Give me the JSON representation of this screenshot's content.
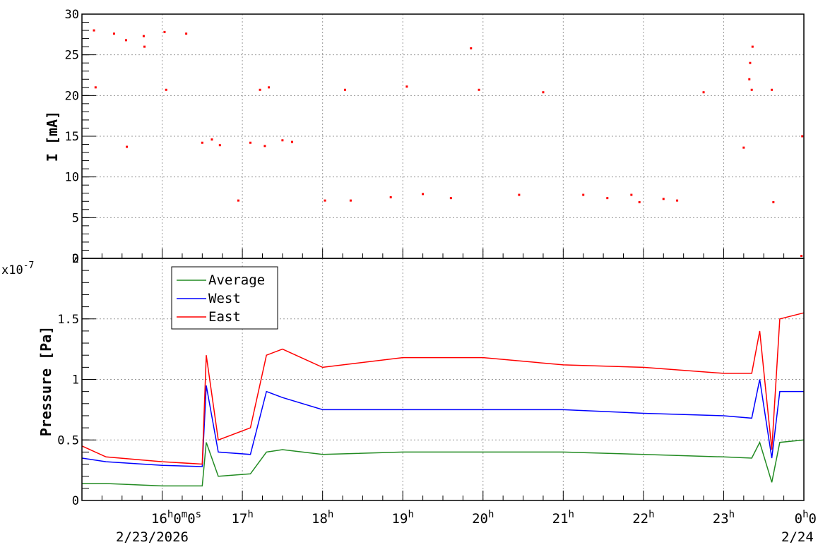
{
  "chart_data": [
    {
      "type": "scatter",
      "panel": "top",
      "ylabel": "I [mA]",
      "ylim": [
        0,
        30
      ],
      "yticks": [
        "0",
        "5",
        "10",
        "15",
        "20",
        "25",
        "30"
      ],
      "grid": true,
      "color": "#ff0000",
      "series": [
        {
          "values": [
            [
              15.15,
              28.0
            ],
            [
              15.17,
              21.0
            ],
            [
              15.4,
              27.6
            ],
            [
              15.55,
              26.8
            ],
            [
              15.56,
              13.7
            ],
            [
              15.77,
              27.3
            ],
            [
              15.78,
              26.0
            ],
            [
              16.03,
              27.8
            ],
            [
              16.05,
              20.7
            ],
            [
              16.3,
              27.6
            ],
            [
              16.5,
              14.2
            ],
            [
              16.62,
              14.6
            ],
            [
              16.72,
              13.9
            ],
            [
              16.95,
              7.1
            ],
            [
              17.1,
              14.2
            ],
            [
              17.22,
              20.7
            ],
            [
              17.33,
              21.0
            ],
            [
              17.28,
              13.8
            ],
            [
              17.5,
              14.5
            ],
            [
              17.62,
              14.3
            ],
            [
              18.03,
              7.1
            ],
            [
              18.28,
              20.7
            ],
            [
              18.35,
              7.1
            ],
            [
              18.85,
              7.5
            ],
            [
              19.05,
              21.1
            ],
            [
              19.25,
              7.9
            ],
            [
              19.6,
              7.4
            ],
            [
              19.95,
              20.7
            ],
            [
              19.85,
              25.8
            ],
            [
              20.45,
              7.8
            ],
            [
              20.75,
              20.4
            ],
            [
              21.25,
              7.8
            ],
            [
              21.55,
              7.4
            ],
            [
              21.85,
              7.8
            ],
            [
              21.95,
              6.9
            ],
            [
              22.25,
              7.3
            ],
            [
              22.42,
              7.1
            ],
            [
              22.75,
              20.4
            ],
            [
              23.25,
              13.6
            ],
            [
              23.35,
              20.7
            ],
            [
              23.32,
              22.0
            ],
            [
              23.33,
              24.0
            ],
            [
              23.36,
              26.0
            ],
            [
              23.6,
              20.7
            ],
            [
              23.62,
              6.9
            ],
            [
              23.98,
              15.0
            ],
            [
              23.97,
              0.3
            ]
          ]
        }
      ]
    },
    {
      "type": "line",
      "panel": "bottom",
      "ylabel": "Pressure [Pa]",
      "yscale_label": "x10",
      "yscale_exp": "-7",
      "ylim": [
        0,
        2.0
      ],
      "yticks": [
        "0",
        "0.5",
        "1",
        "1.5",
        "2"
      ],
      "grid": true,
      "legend_position": "top-left",
      "series": [
        {
          "name": "Average",
          "color": "#228b22",
          "values": [
            [
              15.0,
              0.14
            ],
            [
              15.3,
              0.14
            ],
            [
              16.0,
              0.12
            ],
            [
              16.5,
              0.12
            ],
            [
              16.55,
              0.48
            ],
            [
              16.7,
              0.2
            ],
            [
              17.1,
              0.22
            ],
            [
              17.3,
              0.4
            ],
            [
              17.5,
              0.42
            ],
            [
              18.0,
              0.38
            ],
            [
              19.0,
              0.4
            ],
            [
              20.0,
              0.4
            ],
            [
              21.0,
              0.4
            ],
            [
              22.0,
              0.38
            ],
            [
              23.0,
              0.36
            ],
            [
              23.35,
              0.35
            ],
            [
              23.45,
              0.48
            ],
            [
              23.6,
              0.15
            ],
            [
              23.7,
              0.48
            ],
            [
              24.0,
              0.5
            ]
          ]
        },
        {
          "name": "West",
          "color": "#0000ff",
          "values": [
            [
              15.0,
              0.35
            ],
            [
              15.3,
              0.32
            ],
            [
              16.0,
              0.29
            ],
            [
              16.5,
              0.28
            ],
            [
              16.55,
              0.95
            ],
            [
              16.7,
              0.4
            ],
            [
              17.1,
              0.38
            ],
            [
              17.3,
              0.9
            ],
            [
              17.5,
              0.85
            ],
            [
              18.0,
              0.75
            ],
            [
              19.0,
              0.75
            ],
            [
              20.0,
              0.75
            ],
            [
              21.0,
              0.75
            ],
            [
              22.0,
              0.72
            ],
            [
              23.0,
              0.7
            ],
            [
              23.35,
              0.68
            ],
            [
              23.45,
              1.0
            ],
            [
              23.6,
              0.35
            ],
            [
              23.7,
              0.9
            ],
            [
              24.0,
              0.9
            ]
          ]
        },
        {
          "name": "East",
          "color": "#ff0000",
          "values": [
            [
              15.0,
              0.45
            ],
            [
              15.3,
              0.36
            ],
            [
              16.0,
              0.32
            ],
            [
              16.5,
              0.3
            ],
            [
              16.55,
              1.2
            ],
            [
              16.7,
              0.5
            ],
            [
              17.1,
              0.6
            ],
            [
              17.3,
              1.2
            ],
            [
              17.5,
              1.25
            ],
            [
              18.0,
              1.1
            ],
            [
              19.0,
              1.18
            ],
            [
              20.0,
              1.18
            ],
            [
              21.0,
              1.12
            ],
            [
              22.0,
              1.1
            ],
            [
              23.0,
              1.05
            ],
            [
              23.35,
              1.05
            ],
            [
              23.45,
              1.4
            ],
            [
              23.6,
              0.42
            ],
            [
              23.7,
              1.5
            ],
            [
              24.0,
              1.55
            ]
          ]
        }
      ]
    }
  ],
  "x_axis": {
    "xlim_hours": [
      15.0,
      24.0
    ],
    "tick_labels": [
      {
        "hour": 16,
        "main": "16",
        "sup": "h",
        "extra": "0",
        "extra_sup": "m",
        "extra2": "0",
        "extra2_sup": "s"
      },
      {
        "hour": 17,
        "main": "17",
        "sup": "h"
      },
      {
        "hour": 18,
        "main": "18",
        "sup": "h"
      },
      {
        "hour": 19,
        "main": "19",
        "sup": "h"
      },
      {
        "hour": 20,
        "main": "20",
        "sup": "h"
      },
      {
        "hour": 21,
        "main": "21",
        "sup": "h"
      },
      {
        "hour": 22,
        "main": "22",
        "sup": "h"
      },
      {
        "hour": 23,
        "main": "23",
        "sup": "h"
      },
      {
        "hour": 24,
        "main": "0",
        "sup": "h",
        "extra": "0"
      }
    ],
    "date_left": "2/23/2026",
    "date_right": "2/24"
  }
}
